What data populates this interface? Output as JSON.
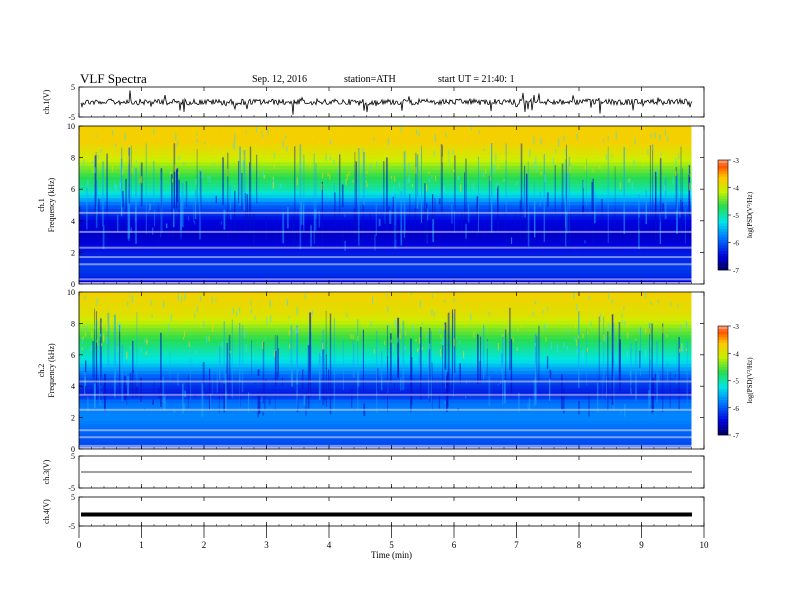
{
  "header": {
    "title": "VLF  Spectra",
    "date": "Sep. 12, 2016",
    "station": "station=ATH",
    "start": "start  UT  =   21:40: 1"
  },
  "chart_data": {
    "type": "heatmap",
    "x": {
      "label": "Time  (min)",
      "range": [
        0,
        10
      ],
      "ticks": [
        0,
        1,
        2,
        3,
        4,
        5,
        6,
        7,
        8,
        9,
        10
      ],
      "data_extent": [
        0,
        9.8
      ]
    },
    "panels": [
      {
        "kind": "waveform",
        "ylabel": "ch.1(V)",
        "ylim": [
          -5,
          5
        ],
        "ticks": [
          "5",
          "-5"
        ],
        "baseline": 0,
        "noise": "high"
      },
      {
        "kind": "spectrogram",
        "ylabel": "ch.1\nFrequency  (kHz)",
        "ylim": [
          0,
          10
        ],
        "ticks": [
          "0",
          "2",
          "4",
          "6",
          "8",
          "10"
        ],
        "colorbar": {
          "label": "log(PSD(V²/Hz)",
          "range": [
            -7,
            -3
          ],
          "ticks": [
            "-3",
            "-4",
            "-5",
            "-6",
            "-7"
          ]
        },
        "profile": [
          {
            "f": 0.0,
            "level": -6.6
          },
          {
            "f": 0.5,
            "level": -6.3
          },
          {
            "f": 1.0,
            "level": -6.2
          },
          {
            "f": 2.0,
            "level": -6.4
          },
          {
            "f": 3.0,
            "level": -6.6
          },
          {
            "f": 4.0,
            "level": -6.5
          },
          {
            "f": 5.0,
            "level": -6.0
          },
          {
            "f": 5.5,
            "level": -5.5
          },
          {
            "f": 6.0,
            "level": -5.1
          },
          {
            "f": 7.0,
            "level": -4.7
          },
          {
            "f": 8.0,
            "level": -4.2
          },
          {
            "f": 9.0,
            "level": -3.9
          },
          {
            "f": 10.0,
            "level": -3.9
          }
        ],
        "lines_khz": [
          0.3,
          1.25,
          1.7,
          2.3,
          3.3,
          4.5
        ]
      },
      {
        "kind": "spectrogram",
        "ylabel": "ch.2\nFrequency  (kHz)",
        "ylim": [
          0,
          10
        ],
        "ticks": [
          "0",
          "2",
          "4",
          "6",
          "8",
          "10"
        ],
        "colorbar": {
          "label": "log(PSD(V²/Hz)",
          "range": [
            -7,
            -3
          ],
          "ticks": [
            "-3",
            "-4",
            "-5",
            "-6",
            "-7"
          ]
        },
        "profile": [
          {
            "f": 0.0,
            "level": -6.2
          },
          {
            "f": 1.0,
            "level": -6.0
          },
          {
            "f": 2.0,
            "level": -5.8
          },
          {
            "f": 3.0,
            "level": -5.9
          },
          {
            "f": 3.5,
            "level": -6.4
          },
          {
            "f": 4.5,
            "level": -6.1
          },
          {
            "f": 5.5,
            "level": -5.4
          },
          {
            "f": 6.5,
            "level": -5.0
          },
          {
            "f": 7.5,
            "level": -4.6
          },
          {
            "f": 8.5,
            "level": -4.1
          },
          {
            "f": 10.0,
            "level": -3.9
          }
        ],
        "lines_khz": [
          0.2,
          0.75,
          1.2,
          2.5,
          3.45,
          4.3
        ]
      },
      {
        "kind": "waveform",
        "ylabel": "ch.3(V)",
        "ylim": [
          -5,
          5
        ],
        "ticks": [
          "5",
          "-5"
        ],
        "baseline": 0,
        "noise": "none"
      },
      {
        "kind": "waveform",
        "ylabel": "ch.4(V)",
        "ylim": [
          -5,
          5
        ],
        "ticks": [
          "5",
          "-5"
        ],
        "baseline": 0,
        "noise": "thick"
      }
    ]
  }
}
